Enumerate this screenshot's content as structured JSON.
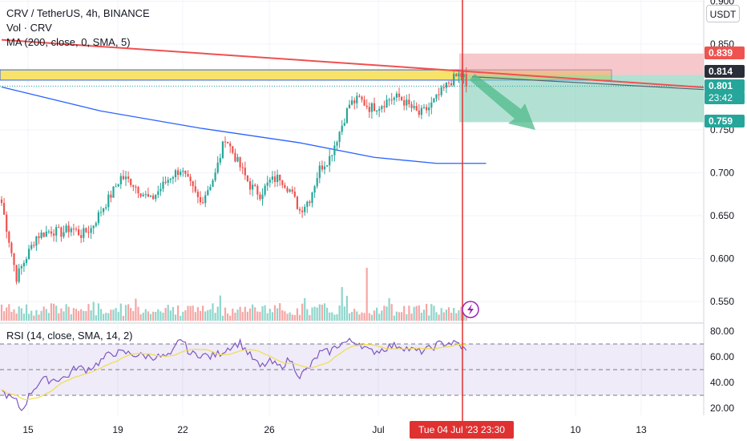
{
  "header": {
    "title": "CRV / TetherUS, 4h, BINANCE",
    "volume_label": "Vol · CRV",
    "ma_label": "MA (200, close, 0, SMA, 5)"
  },
  "currency": "USDT",
  "rsi_label": "RSI (14, close, SMA, 14, 2)",
  "price_tags": {
    "stop": "0.839",
    "entry": "0.814",
    "last": "0.801",
    "countdown": "23:42",
    "target": "0.759"
  },
  "time_tag": "Tue 04 Jul '23   23:30",
  "colors": {
    "up": "#26a69a",
    "down": "#ef5350",
    "ma": "#2962ff",
    "rsi": "#7e57c2",
    "rsi_ma": "#f0dc4e",
    "resistance_line": "#f05050",
    "zone_yellow": "#f8e36a",
    "stop_zone": "#f2a3a8",
    "target_zone": "#7fcdb7",
    "cursor": "#e03131"
  },
  "chart_data": {
    "type": "candlestick",
    "symbol": "CRV / TetherUS",
    "interval": "4h",
    "exchange": "BINANCE",
    "price_axis": {
      "ticks": [
        "0.900",
        "0.850",
        "0.800",
        "0.750",
        "0.700",
        "0.650",
        "0.600",
        "0.550"
      ],
      "range": [
        0.52,
        0.905
      ]
    },
    "rsi_axis": {
      "ticks": [
        "80.00",
        "60.00",
        "40.00",
        "20.00"
      ],
      "range": [
        15,
        85
      ],
      "upper_band": 70,
      "lower_band": 30
    },
    "x_ticks": [
      "15",
      "19",
      "22",
      "26",
      "Jul",
      "10",
      "13"
    ],
    "control_points": [
      [
        0,
        0.665
      ],
      [
        6,
        0.578
      ],
      [
        10,
        0.602
      ],
      [
        14,
        0.626
      ],
      [
        20,
        0.633
      ],
      [
        24,
        0.63
      ],
      [
        28,
        0.636
      ],
      [
        32,
        0.628
      ],
      [
        36,
        0.635
      ],
      [
        40,
        0.656
      ],
      [
        44,
        0.674
      ],
      [
        48,
        0.695
      ],
      [
        52,
        0.69
      ],
      [
        56,
        0.678
      ],
      [
        60,
        0.668
      ],
      [
        64,
        0.682
      ],
      [
        68,
        0.696
      ],
      [
        72,
        0.704
      ],
      [
        76,
        0.685
      ],
      [
        80,
        0.665
      ],
      [
        86,
        0.698
      ],
      [
        90,
        0.742
      ],
      [
        94,
        0.718
      ],
      [
        100,
        0.685
      ],
      [
        104,
        0.675
      ],
      [
        108,
        0.69
      ],
      [
        112,
        0.695
      ],
      [
        116,
        0.68
      ],
      [
        120,
        0.656
      ],
      [
        124,
        0.67
      ],
      [
        128,
        0.705
      ],
      [
        132,
        0.718
      ],
      [
        136,
        0.748
      ],
      [
        140,
        0.78
      ],
      [
        144,
        0.786
      ],
      [
        148,
        0.776
      ],
      [
        152,
        0.778
      ],
      [
        156,
        0.786
      ],
      [
        160,
        0.788
      ],
      [
        164,
        0.778
      ],
      [
        168,
        0.768
      ],
      [
        172,
        0.776
      ],
      [
        176,
        0.79
      ],
      [
        180,
        0.805
      ],
      [
        184,
        0.814
      ],
      [
        186,
        0.812
      ],
      [
        187,
        0.801
      ]
    ],
    "ma200": [
      [
        0,
        0.8
      ],
      [
        40,
        0.772
      ],
      [
        80,
        0.752
      ],
      [
        120,
        0.735
      ],
      [
        150,
        0.718
      ],
      [
        175,
        0.711
      ],
      [
        195,
        0.711
      ]
    ],
    "resistance_line": {
      "from": [
        0,
        0.855
      ],
      "to": [
        280,
        0.8
      ]
    },
    "supply_zone": {
      "top": 0.82,
      "bottom": 0.808
    },
    "position": {
      "entry": 0.814,
      "stop": 0.839,
      "target": 0.759
    },
    "last_price": 0.801,
    "rsi_controls": [
      [
        0,
        33
      ],
      [
        6,
        25
      ],
      [
        8,
        18
      ],
      [
        12,
        33
      ],
      [
        16,
        42
      ],
      [
        20,
        42
      ],
      [
        26,
        44
      ],
      [
        30,
        52
      ],
      [
        34,
        50
      ],
      [
        38,
        54
      ],
      [
        44,
        63
      ],
      [
        50,
        63
      ],
      [
        56,
        61
      ],
      [
        62,
        60
      ],
      [
        68,
        60
      ],
      [
        72,
        75
      ],
      [
        76,
        62
      ],
      [
        80,
        62
      ],
      [
        84,
        60
      ],
      [
        88,
        63
      ],
      [
        92,
        68
      ],
      [
        96,
        71
      ],
      [
        100,
        61
      ],
      [
        104,
        52
      ],
      [
        108,
        56
      ],
      [
        112,
        52
      ],
      [
        116,
        58
      ],
      [
        120,
        45
      ],
      [
        124,
        52
      ],
      [
        128,
        63
      ],
      [
        132,
        64
      ],
      [
        136,
        70
      ],
      [
        140,
        72
      ],
      [
        144,
        71
      ],
      [
        148,
        64
      ],
      [
        152,
        65
      ],
      [
        156,
        68
      ],
      [
        160,
        69
      ],
      [
        164,
        66
      ],
      [
        168,
        64
      ],
      [
        172,
        66
      ],
      [
        176,
        70
      ],
      [
        180,
        71
      ],
      [
        184,
        70
      ],
      [
        187,
        64
      ]
    ]
  }
}
